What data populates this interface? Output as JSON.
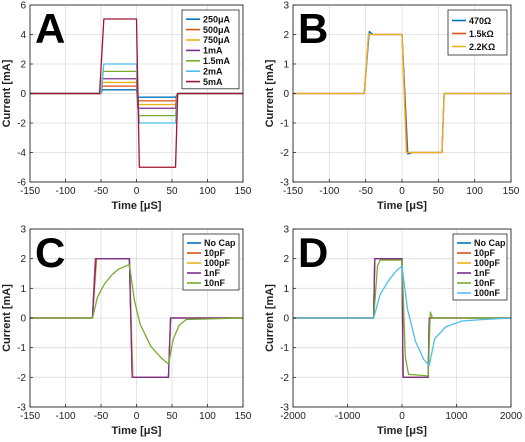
{
  "chart_data": [
    {
      "type": "line",
      "panel_label": "A",
      "xlabel": "Time [μS]",
      "ylabel": "Current [mA]",
      "xlim": [
        -150,
        150
      ],
      "ylim": [
        -6,
        6
      ],
      "xticks": [
        -150,
        -100,
        -50,
        0,
        50,
        100,
        150
      ],
      "yticks": [
        -6,
        -4,
        -2,
        0,
        2,
        4,
        6
      ],
      "grid": true,
      "legend_position": "top-right",
      "series": [
        {
          "name": "250μA",
          "color": "#0072bd",
          "x": [
            -150,
            -50,
            -48,
            0,
            2,
            55,
            58,
            150
          ],
          "y": [
            0,
            0,
            0.25,
            0.25,
            -0.25,
            -0.25,
            0,
            0
          ]
        },
        {
          "name": "500μA",
          "color": "#d95319",
          "x": [
            -150,
            -50,
            -48,
            0,
            2,
            55,
            58,
            150
          ],
          "y": [
            0,
            0,
            0.5,
            0.5,
            -0.5,
            -0.5,
            0,
            0
          ]
        },
        {
          "name": "750μA",
          "color": "#edb120",
          "x": [
            -150,
            -50,
            -48,
            0,
            2,
            55,
            58,
            150
          ],
          "y": [
            0,
            0,
            0.75,
            0.75,
            -0.75,
            -0.75,
            0,
            0
          ]
        },
        {
          "name": "1mA",
          "color": "#7e2f8e",
          "x": [
            -150,
            -50,
            -48,
            0,
            2,
            55,
            58,
            150
          ],
          "y": [
            0,
            0,
            1.0,
            1.0,
            -1.0,
            -1.0,
            0,
            0
          ]
        },
        {
          "name": "1.5mA",
          "color": "#77ac30",
          "x": [
            -150,
            -50,
            -47,
            0,
            3,
            55,
            58,
            150
          ],
          "y": [
            0,
            0,
            1.5,
            1.5,
            -1.5,
            -1.5,
            0,
            0
          ]
        },
        {
          "name": "2mA",
          "color": "#4dbeee",
          "x": [
            -150,
            -50,
            -46,
            0,
            4,
            55,
            58,
            150
          ],
          "y": [
            0,
            0,
            2.0,
            2.0,
            -2.0,
            -2.0,
            0,
            0
          ]
        },
        {
          "name": "5mA",
          "color": "#a2142f",
          "x": [
            -150,
            -52,
            -46,
            0,
            4,
            55,
            58,
            150
          ],
          "y": [
            0,
            0,
            5.05,
            5.05,
            -5.0,
            -5.0,
            0,
            0
          ]
        }
      ]
    },
    {
      "type": "line",
      "panel_label": "B",
      "xlabel": "Time [μS]",
      "ylabel": "Current [mA]",
      "xlim": [
        -150,
        150
      ],
      "ylim": [
        -3,
        3
      ],
      "xticks": [
        -150,
        -100,
        -50,
        0,
        50,
        100,
        150
      ],
      "yticks": [
        -3,
        -2,
        -1,
        0,
        1,
        2,
        3
      ],
      "grid": true,
      "legend_position": "top-right",
      "series": [
        {
          "name": "470Ω",
          "color": "#0072bd",
          "x": [
            -150,
            -52,
            -45,
            -40,
            0,
            8,
            14,
            55,
            58,
            150
          ],
          "y": [
            0,
            0,
            2.1,
            2.0,
            2.0,
            -2.05,
            -2.0,
            -2.0,
            0,
            0
          ]
        },
        {
          "name": "1.5kΩ",
          "color": "#d95319",
          "x": [
            -150,
            -52,
            -46,
            0,
            7,
            55,
            58,
            150
          ],
          "y": [
            0,
            0,
            2.0,
            2.0,
            -2.0,
            -2.0,
            0,
            0
          ]
        },
        {
          "name": "2.2KΩ",
          "color": "#edb120",
          "x": [
            -150,
            -52,
            -46,
            0,
            6,
            55,
            58,
            150
          ],
          "y": [
            0,
            0,
            2.0,
            2.0,
            -2.0,
            -2.0,
            0,
            0
          ]
        }
      ]
    },
    {
      "type": "line",
      "panel_label": "C",
      "xlabel": "Time [μS]",
      "ylabel": "Current [mA]",
      "xlim": [
        -150,
        150
      ],
      "ylim": [
        -3,
        3
      ],
      "xticks": [
        -150,
        -100,
        -50,
        0,
        50,
        100,
        150
      ],
      "yticks": [
        -3,
        -2,
        -1,
        0,
        1,
        2,
        3
      ],
      "grid": true,
      "legend_position": "top-right",
      "series": [
        {
          "name": "No Cap",
          "color": "#0072bd",
          "x": [
            -150,
            -62,
            -58,
            -10,
            -6,
            45,
            48,
            150
          ],
          "y": [
            0,
            0,
            2.0,
            2.0,
            -2.0,
            -2.0,
            0,
            0
          ]
        },
        {
          "name": "10pF",
          "color": "#d95319",
          "x": [
            -150,
            -62,
            -58,
            -10,
            -6,
            45,
            48,
            150
          ],
          "y": [
            0,
            0,
            2.0,
            2.0,
            -2.0,
            -2.0,
            0,
            0
          ]
        },
        {
          "name": "100pF",
          "color": "#edb120",
          "x": [
            -150,
            -62,
            -56,
            -10,
            -5,
            45,
            48,
            150
          ],
          "y": [
            0,
            0,
            2.0,
            2.0,
            -2.0,
            -2.0,
            0,
            0
          ]
        },
        {
          "name": "1nF",
          "color": "#7e2f8e",
          "x": [
            -150,
            -62,
            -57,
            -10,
            -6,
            45,
            48,
            150
          ],
          "y": [
            0,
            0,
            2.0,
            2.0,
            -2.0,
            -2.0,
            0,
            0
          ]
        },
        {
          "name": "10nF",
          "color": "#77ac30",
          "x": [
            -150,
            -62,
            -55,
            -45,
            -35,
            -25,
            -10,
            -3,
            5,
            20,
            35,
            45,
            52,
            60,
            70,
            150
          ],
          "y": [
            0,
            0,
            0.7,
            1.15,
            1.45,
            1.65,
            1.8,
            0.6,
            -0.2,
            -0.95,
            -1.35,
            -1.55,
            -0.7,
            -0.25,
            -0.05,
            0
          ]
        }
      ]
    },
    {
      "type": "line",
      "panel_label": "D",
      "xlabel": "Time [μS]",
      "ylabel": "Current [mA]",
      "xlim": [
        -2000,
        2000
      ],
      "ylim": [
        -3,
        3
      ],
      "xticks": [
        -2000,
        -1000,
        0,
        1000,
        2000
      ],
      "yticks": [
        -3,
        -2,
        -1,
        0,
        1,
        2,
        3
      ],
      "grid": true,
      "legend_position": "top-right",
      "series": [
        {
          "name": "No Cap",
          "color": "#0072bd",
          "x": [
            -2000,
            -520,
            -500,
            0,
            20,
            480,
            500,
            2000
          ],
          "y": [
            0,
            0,
            2.0,
            2.0,
            -2.0,
            -2.0,
            0,
            0
          ]
        },
        {
          "name": "10pF",
          "color": "#d95319",
          "x": [
            -2000,
            -520,
            -500,
            0,
            20,
            480,
            500,
            2000
          ],
          "y": [
            0,
            0,
            2.0,
            2.0,
            -2.0,
            -2.0,
            0,
            0
          ]
        },
        {
          "name": "100pF",
          "color": "#edb120",
          "x": [
            -2000,
            -520,
            -500,
            0,
            20,
            480,
            500,
            2000
          ],
          "y": [
            0,
            0,
            2.0,
            2.0,
            -2.0,
            -2.0,
            0,
            0
          ]
        },
        {
          "name": "1nF",
          "color": "#7e2f8e",
          "x": [
            -2000,
            -520,
            -500,
            0,
            20,
            480,
            500,
            2000
          ],
          "y": [
            0,
            0,
            2.0,
            2.0,
            -2.0,
            -2.0,
            0,
            0
          ]
        },
        {
          "name": "10nF",
          "color": "#77ac30",
          "x": [
            -2000,
            -520,
            -450,
            -400,
            0,
            60,
            120,
            480,
            520,
            560,
            2000
          ],
          "y": [
            0,
            0,
            1.75,
            1.95,
            1.95,
            -1.3,
            -1.9,
            -1.95,
            0.2,
            0,
            0
          ]
        },
        {
          "name": "100nF",
          "color": "#4dbeee",
          "x": [
            -2000,
            -520,
            -400,
            -250,
            -100,
            0,
            100,
            250,
            400,
            500,
            600,
            800,
            1100,
            1500,
            2000
          ],
          "y": [
            0,
            0,
            0.8,
            1.25,
            1.6,
            1.75,
            0.3,
            -0.8,
            -1.4,
            -1.6,
            -0.7,
            -0.3,
            -0.1,
            -0.05,
            0
          ]
        }
      ]
    }
  ]
}
